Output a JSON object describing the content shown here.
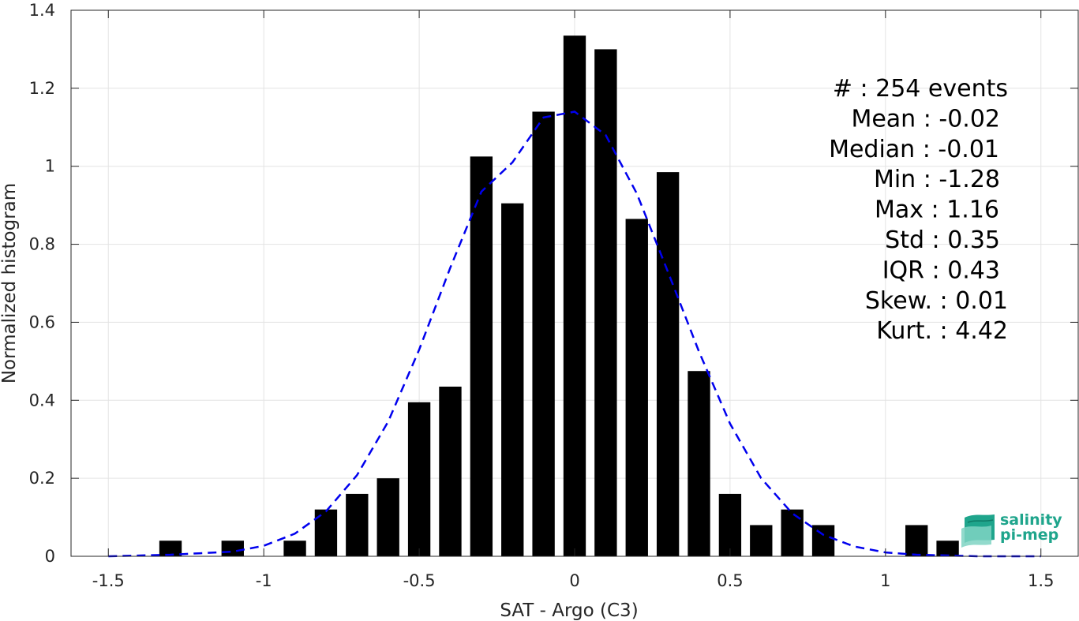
{
  "chart_data": {
    "type": "bar",
    "xlabel": "SAT - Argo (C3)",
    "ylabel": "Normalized histogram",
    "xlim": [
      -1.62,
      1.62
    ],
    "ylim": [
      0,
      1.4
    ],
    "xticks": [
      -1.5,
      -1,
      -0.5,
      0,
      0.5,
      1,
      1.5
    ],
    "xtick_labels": [
      "-1.5",
      "-1",
      "-0.5",
      "0",
      "0.5",
      "1",
      "1.5"
    ],
    "yticks": [
      0,
      0.2,
      0.4,
      0.6,
      0.8,
      1,
      1.2,
      1.4
    ],
    "ytick_labels": [
      "0",
      "0.2",
      "0.4",
      "0.6",
      "0.8",
      "1",
      "1.2",
      "1.4"
    ],
    "grid": true,
    "bin_width": 0.1,
    "bar_width": 0.072,
    "bars": {
      "x": [
        -1.3,
        -1.1,
        -0.9,
        -0.8,
        -0.7,
        -0.6,
        -0.5,
        -0.4,
        -0.3,
        -0.2,
        -0.1,
        0.0,
        0.1,
        0.2,
        0.3,
        0.4,
        0.5,
        0.6,
        0.7,
        0.8,
        1.1,
        1.2
      ],
      "values": [
        0.04,
        0.04,
        0.04,
        0.12,
        0.16,
        0.2,
        0.395,
        0.435,
        1.025,
        0.905,
        1.14,
        1.335,
        1.3,
        0.865,
        0.985,
        0.475,
        0.16,
        0.08,
        0.12,
        0.08,
        0.08,
        0.04
      ],
      "color": "#000000"
    },
    "fit_curve": {
      "style": "dashed",
      "color": "#0000ee",
      "x": [
        -1.5,
        -1.3,
        -1.1,
        -1.0,
        -0.9,
        -0.8,
        -0.7,
        -0.6,
        -0.5,
        -0.4,
        -0.3,
        -0.2,
        -0.1,
        0.0,
        0.1,
        0.2,
        0.3,
        0.4,
        0.5,
        0.6,
        0.7,
        0.8,
        0.9,
        1.0,
        1.1,
        1.3,
        1.5
      ],
      "values": [
        0.0,
        0.004,
        0.012,
        0.027,
        0.058,
        0.115,
        0.208,
        0.345,
        0.53,
        0.74,
        0.935,
        1.01,
        1.125,
        1.14,
        1.08,
        0.93,
        0.73,
        0.525,
        0.34,
        0.2,
        0.11,
        0.055,
        0.025,
        0.01,
        0.004,
        0.0,
        0.0
      ]
    },
    "stats": [
      {
        "text": "#  : 254 events"
      },
      {
        "text": "Mean : -0.02"
      },
      {
        "text": "Median : -0.01"
      },
      {
        "text": "Min : -1.28"
      },
      {
        "text": "Max : 1.16"
      },
      {
        "text": "Std : 0.35"
      },
      {
        "text": "IQR : 0.43"
      },
      {
        "text": "Skew. : 0.01"
      },
      {
        "text": "Kurt. : 4.42"
      }
    ]
  },
  "logo": {
    "line1": "salinity",
    "line2": "pi-mep",
    "color": "#1fa58c"
  }
}
